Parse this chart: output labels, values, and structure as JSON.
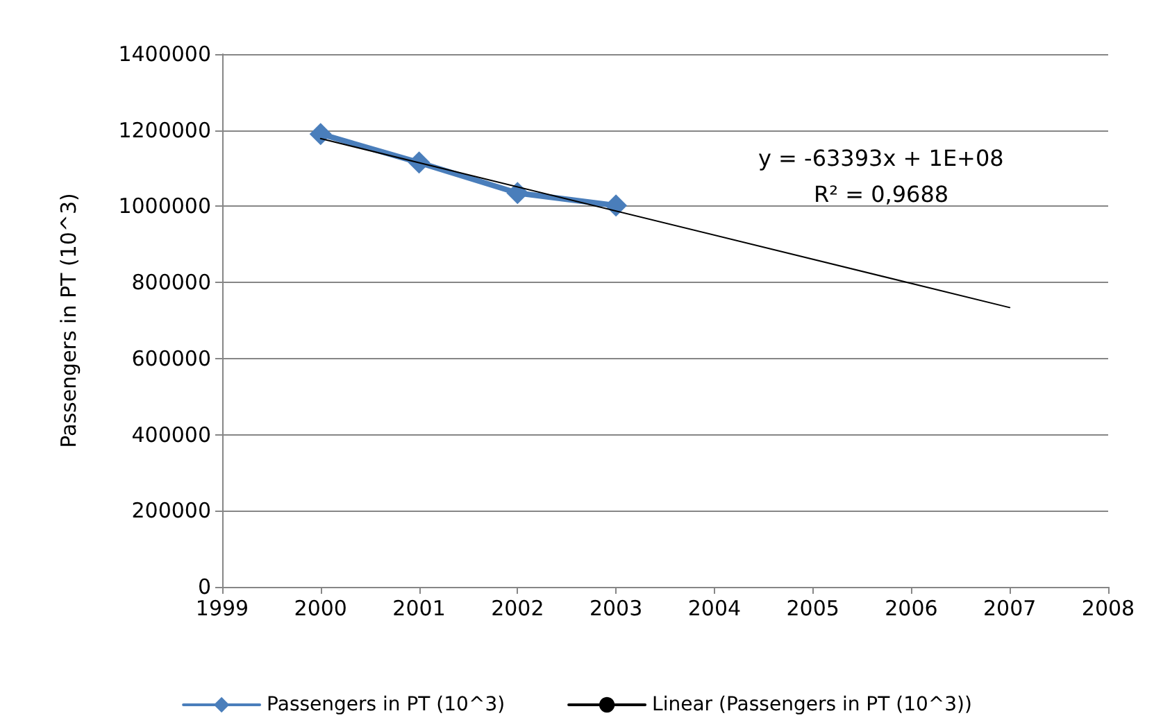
{
  "chart_data": {
    "type": "line",
    "ylabel": "Passengers in PT (10^3)",
    "x": [
      2000,
      2001,
      2002,
      2003
    ],
    "series": [
      {
        "name": "Passengers in PT (10^3)",
        "color": "#4a7ebb",
        "values": [
          1190000,
          1115000,
          1035000,
          1002000
        ]
      },
      {
        "name": "Linear (Passengers in PT (10^3))",
        "color": "#000000",
        "type": "line",
        "marker": "none",
        "x": [
          2000,
          2007
        ],
        "values": [
          1178000,
          734000
        ]
      }
    ],
    "xlim": [
      1999,
      2008
    ],
    "xticks": [
      1999,
      2000,
      2001,
      2002,
      2003,
      2004,
      2005,
      2006,
      2007,
      2008
    ],
    "ylim": [
      0,
      1400000
    ],
    "yticks": [
      0,
      200000,
      400000,
      600000,
      800000,
      1000000,
      1200000,
      1400000
    ],
    "grid": "y",
    "legend": "bottom",
    "marker": "diamond",
    "annotations": [
      "y = -63393x + 1E+08",
      "R² = 0,9688"
    ]
  }
}
